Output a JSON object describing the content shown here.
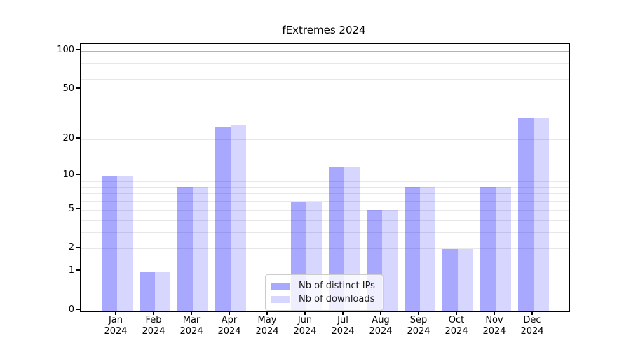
{
  "title": "fExtremes 2024",
  "colors": {
    "bar_distinct_ips_fill": "rgba(0,0,255,0.34)",
    "bar_distinct_ips_hex": "#aaaaff",
    "bar_downloads_fill": "rgba(0,0,255,0.16)",
    "bar_downloads_hex": "#d9d9ff",
    "gridline_major": "#b3b3b3",
    "gridline_minor": "#e8e8e8",
    "axis": "#000000",
    "legend_border": "#cccccc"
  },
  "legend": {
    "position": "lower center"
  },
  "chart_data": {
    "type": "bar",
    "title": "fExtremes 2024",
    "categories": [
      "Jan 2024",
      "Feb 2024",
      "Mar 2024",
      "Apr 2024",
      "May 2024",
      "Jun 2024",
      "Jul 2024",
      "Aug 2024",
      "Sep 2024",
      "Oct 2024",
      "Nov 2024",
      "Dec 2024"
    ],
    "series": [
      {
        "name": "Nb of distinct IPs",
        "color": "#aaaaff",
        "fill": "rgba(0,0,255,0.34)",
        "values": [
          10,
          1,
          8,
          25,
          0,
          6,
          12,
          5,
          8,
          2,
          8,
          30
        ]
      },
      {
        "name": "Nb of downloads",
        "color": "#d9d9ff",
        "fill": "rgba(0,0,255,0.16)",
        "values": [
          10,
          1,
          8,
          26,
          0,
          6,
          12,
          5,
          8,
          2,
          8,
          30
        ]
      }
    ],
    "xlabel": "",
    "ylabel": "",
    "yscale": "log1p",
    "ylim": [
      0,
      114
    ],
    "yticks": [
      100,
      50,
      20,
      10,
      5,
      2,
      1,
      0
    ],
    "major_gridlines": [
      1,
      10,
      100
    ],
    "minor_gridlines": [
      2,
      3,
      4,
      5,
      6,
      7,
      8,
      9,
      20,
      30,
      40,
      50,
      60,
      70,
      80,
      90
    ],
    "grid": true,
    "legend_position": "lower center"
  }
}
